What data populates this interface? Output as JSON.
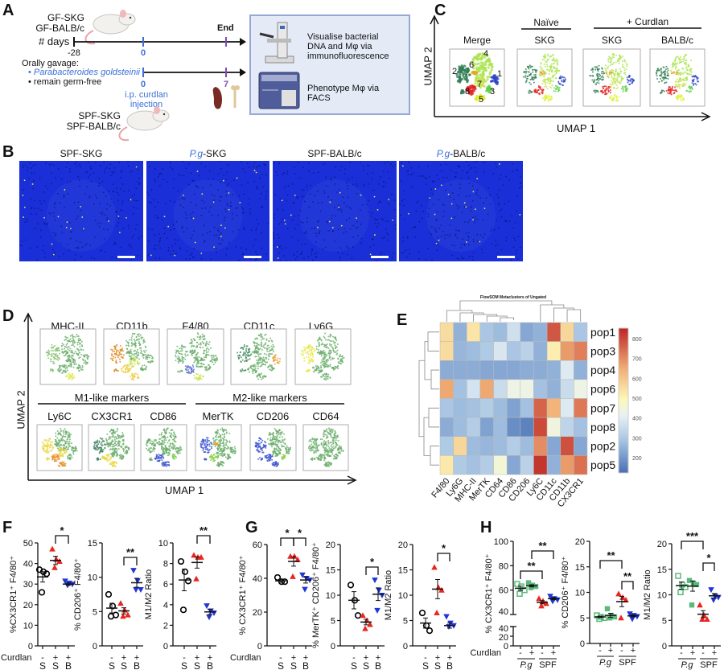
{
  "panel_labels": {
    "a": "A",
    "b": "B",
    "c": "C",
    "d": "D",
    "e": "E",
    "f": "F",
    "g": "G",
    "h": "H"
  },
  "panel_a": {
    "gf_strains": [
      "GF-SKG",
      "GF-BALB/c"
    ],
    "days_label": "# days",
    "tick_start": "-28",
    "tick_zero": "0",
    "end_label": "End",
    "gavage_title": "Orally gavage:",
    "gavage_items": [
      "Parabacteroides goldsteinii",
      "remain germ-free"
    ],
    "tick_zero_2": "0",
    "tick_end_2": "7",
    "injection_lines": [
      "i.p. curdlan",
      "injection"
    ],
    "spf_strains": [
      "SPF-SKG",
      "SPF-BALB/c"
    ],
    "readouts": [
      {
        "lines": [
          "Visualise bacterial",
          "DNA and Mφ via",
          "immunofluorescence"
        ],
        "icon": "microscope-icon"
      },
      {
        "lines": [
          "Phenotype Mφ via",
          "FACS"
        ],
        "icon": "flow-cytometer-icon"
      }
    ],
    "colors": {
      "timeline_zero": "#3a6fd8",
      "timeline_end": "#7a4fb0",
      "box_fill": "#e4eaf6",
      "box_border": "#95a8d6"
    }
  },
  "panel_b": {
    "titles": [
      {
        "prefix": "",
        "rest": "SPF-SKG"
      },
      {
        "prefix": "P.g",
        "rest": "-SKG"
      },
      {
        "prefix": "",
        "rest": "SPF-BALB/c"
      },
      {
        "prefix": "P.g",
        "rest": "-BALB/c"
      }
    ],
    "colors": {
      "dapi": "#1a2fd8",
      "bacterial_dna": "#f5e84a"
    }
  },
  "panel_c": {
    "y_axis": "UMAP 2",
    "x_axis": "UMAP 1",
    "group_headers": [
      "Naïve",
      "+ Curdlan"
    ],
    "plot_titles": [
      "Merge",
      "SKG",
      "SKG",
      "BALB/c"
    ],
    "cluster_labels": [
      "1",
      "2",
      "3",
      "4",
      "5",
      "6",
      "7",
      "8"
    ],
    "cluster_colors": {
      "1": "#2a44c8",
      "2": "#2f7d52",
      "3": "#5fcf48",
      "4": "#a9e34b",
      "5": "#dff02a",
      "6": "#f0a020",
      "7": "#c9e35a",
      "8": "#e2231f"
    }
  },
  "panel_d": {
    "y_axis": "UMAP 2",
    "x_axis": "UMAP 1",
    "row1_titles": [
      "MHC-II",
      "CD11b",
      "F4/80",
      "CD11c",
      "Ly6G"
    ],
    "group_headers": [
      "M1-like markers",
      "M2-like markers"
    ],
    "row2_titles": [
      "Ly6C",
      "CX3CR1",
      "CD86",
      "MerTK",
      "CD206",
      "CD64"
    ]
  },
  "colors": {
    "naive": "#000000",
    "skg_curdlan": "#e8251f",
    "balb_curdlan": "#1f35d6",
    "pg": "#5cb87a"
  },
  "chart_data": [
    {
      "type": "heatmap",
      "title": "FlowSOM Metaclusters of Ungated",
      "rows": [
        "pop1",
        "pop3",
        "pop4",
        "pop6",
        "pop7",
        "pop8",
        "pop2",
        "pop5"
      ],
      "columns": [
        "F4/80",
        "Ly6G",
        "MHC-II",
        "MerTK",
        "CD64",
        "CD86",
        "CD206",
        "Ly6C",
        "CD11c",
        "CD11b",
        "CX3CR1"
      ],
      "values": [
        [
          560,
          260,
          540,
          300,
          280,
          370,
          240,
          260,
          780,
          570,
          300
        ],
        [
          560,
          270,
          280,
          310,
          390,
          300,
          330,
          260,
          520,
          680,
          720
        ],
        [
          250,
          250,
          250,
          240,
          240,
          240,
          250,
          250,
          260,
          400,
          260
        ],
        [
          660,
          290,
          380,
          660,
          360,
          440,
          440,
          290,
          260,
          360,
          440
        ],
        [
          300,
          280,
          290,
          320,
          280,
          230,
          290,
          760,
          640,
          400,
          730
        ],
        [
          250,
          280,
          320,
          230,
          280,
          190,
          170,
          800,
          450,
          340,
          290
        ],
        [
          310,
          570,
          280,
          270,
          280,
          320,
          280,
          700,
          240,
          790,
          240
        ],
        [
          530,
          310,
          290,
          320,
          460,
          240,
          330,
          830,
          260,
          680,
          740
        ]
      ],
      "colorbar_ticks": [
        "200",
        "300",
        "400",
        "500",
        "600",
        "700",
        "800"
      ],
      "colorbar_range": [
        130,
        850
      ],
      "colormap": "RdYlBu (reversed)",
      "dendrograms": "rows and columns"
    },
    {
      "type": "scatter",
      "panel": "F",
      "ylabel": "%CX3CR1⁺ F4/80⁺",
      "ylim": [
        0,
        50
      ],
      "yticks": [
        "0",
        "10",
        "20",
        "30",
        "40",
        "50"
      ],
      "xrow_label": "Curdlan",
      "curdlan": [
        "-",
        "+",
        "+"
      ],
      "strain": [
        "S",
        "S",
        "B"
      ],
      "groups": [
        {
          "values": [
            37,
            36,
            35,
            26
          ],
          "mean": 33.5,
          "sem": 2.5,
          "marker": "circle-open",
          "color": "#000000"
        },
        {
          "values": [
            47,
            42,
            41,
            38
          ],
          "mean": 41.5,
          "sem": 2,
          "marker": "triangle-up",
          "color": "#e8251f"
        },
        {
          "values": [
            31.5,
            30.5,
            30,
            29.5
          ],
          "mean": 30,
          "sem": 0.6,
          "marker": "triangle-down",
          "color": "#1f35d6"
        }
      ],
      "significance": [
        {
          "from": 1,
          "to": 2,
          "label": "*"
        }
      ]
    },
    {
      "type": "scatter",
      "panel": "F",
      "ylabel": "% CD206⁺ F4/80⁺",
      "ylim": [
        0,
        15
      ],
      "yticks": [
        "0",
        "5",
        "10",
        "15"
      ],
      "curdlan": [
        "-",
        "+",
        "+"
      ],
      "strain": [
        "S",
        "S",
        "B"
      ],
      "groups": [
        {
          "values": [
            7.5,
            5.8,
            4.5,
            4.3
          ],
          "mean": 5.5,
          "sem": 0.7,
          "marker": "circle-open",
          "color": "#000000"
        },
        {
          "values": [
            6.2,
            5.2,
            4.5,
            4.3
          ],
          "mean": 5.1,
          "sem": 0.45,
          "marker": "triangle-up",
          "color": "#e8251f"
        },
        {
          "values": [
            11,
            9.5,
            8.2,
            8.2
          ],
          "mean": 9.2,
          "sem": 0.65,
          "marker": "triangle-down",
          "color": "#1f35d6"
        }
      ],
      "significance": [
        {
          "from": 1,
          "to": 2,
          "label": "**"
        }
      ]
    },
    {
      "type": "scatter",
      "panel": "F",
      "ylabel": "M1/M2 Ratio",
      "ylim": [
        0,
        10
      ],
      "yticks": [
        "0",
        "2",
        "4",
        "6",
        "8",
        "10"
      ],
      "curdlan": [
        "-",
        "+",
        "+"
      ],
      "strain": [
        "S",
        "S",
        "B"
      ],
      "groups": [
        {
          "values": [
            8.2,
            7.2,
            6.3,
            3.5
          ],
          "mean": 6.4,
          "sem": 1.05,
          "marker": "circle-open",
          "color": "#000000"
        },
        {
          "values": [
            8.8,
            8.6,
            8.6,
            6.5
          ],
          "mean": 8.1,
          "sem": 0.55,
          "marker": "triangle-up",
          "color": "#e8251f"
        },
        {
          "values": [
            3.9,
            3.4,
            3.2,
            2.8
          ],
          "mean": 3.3,
          "sem": 0.25,
          "marker": "triangle-down",
          "color": "#1f35d6"
        }
      ],
      "significance": [
        {
          "from": 1,
          "to": 2,
          "label": "**"
        }
      ]
    },
    {
      "type": "scatter",
      "panel": "G",
      "ylabel": "% CX3CR1⁺ F4/80⁺",
      "ylim": [
        0,
        60
      ],
      "yticks": [
        "0",
        "20",
        "40",
        "60"
      ],
      "xrow_label": "Curdlan",
      "curdlan": [
        "-",
        "+",
        "+"
      ],
      "strain": [
        "S",
        "S",
        "B"
      ],
      "groups": [
        {
          "values": [
            40.5,
            38,
            38
          ],
          "mean": 38.5,
          "sem": 0.9,
          "marker": "circle-open",
          "color": "#000000"
        },
        {
          "values": [
            53,
            53,
            51,
            41
          ],
          "mean": 50,
          "sem": 2.8,
          "marker": "triangle-up",
          "color": "#e8251f"
        },
        {
          "values": [
            42,
            40,
            39,
            33.5
          ],
          "mean": 39,
          "sem": 1.8,
          "marker": "triangle-down",
          "color": "#1f35d6"
        }
      ],
      "significance": [
        {
          "from": 0,
          "to": 1,
          "label": "*"
        },
        {
          "from": 1,
          "to": 2,
          "label": "*"
        }
      ]
    },
    {
      "type": "scatter",
      "panel": "G",
      "ylabel": "% MerTK⁺ CD206⁺ F4/80⁺",
      "ylim": [
        0,
        20
      ],
      "yticks": [
        "0",
        "5",
        "10",
        "15",
        "20"
      ],
      "curdlan": [
        "-",
        "+",
        "+"
      ],
      "strain": [
        "S",
        "S",
        "B"
      ],
      "groups": [
        {
          "values": [
            12,
            9,
            6
          ],
          "mean": 9,
          "sem": 1.7,
          "marker": "circle-open",
          "color": "#000000"
        },
        {
          "values": [
            6,
            5,
            4.2,
            3.4
          ],
          "mean": 4.7,
          "sem": 0.55,
          "marker": "triangle-up",
          "color": "#e8251f"
        },
        {
          "values": [
            13,
            11,
            10,
            7
          ],
          "mean": 10.2,
          "sem": 1.25,
          "marker": "triangle-down",
          "color": "#1f35d6"
        }
      ],
      "significance": [
        {
          "from": 1,
          "to": 2,
          "label": "*"
        }
      ]
    },
    {
      "type": "scatter",
      "panel": "G",
      "ylabel": "M1/M2 Ratio",
      "ylim": [
        0,
        20
      ],
      "yticks": [
        "0",
        "5",
        "10",
        "15",
        "20"
      ],
      "curdlan": [
        "-",
        "+",
        "+"
      ],
      "strain": [
        "S",
        "S",
        "B"
      ],
      "groups": [
        {
          "values": [
            6.5,
            4,
            3
          ],
          "mean": 4.5,
          "sem": 1,
          "marker": "circle-open",
          "color": "#000000"
        },
        {
          "values": [
            15.5,
            11.5,
            11,
            6.5
          ],
          "mean": 11.2,
          "sem": 1.9,
          "marker": "triangle-up",
          "color": "#e8251f"
        },
        {
          "values": [
            5.8,
            4.5,
            4,
            3.8
          ],
          "mean": 4,
          "sem": 0.5,
          "marker": "triangle-down",
          "color": "#1f35d6"
        }
      ],
      "significance": [
        {
          "from": 1,
          "to": 2,
          "label": "*"
        }
      ]
    },
    {
      "type": "scatter",
      "panel": "H",
      "ylabel": "% CX3CR1⁺ F4/80⁺",
      "ylim": [
        0,
        100
      ],
      "axis_break": [
        40,
        40
      ],
      "yticks_upper": [
        "40",
        "60",
        "80",
        "100"
      ],
      "yticks_lower": [
        "0",
        "20",
        "40"
      ],
      "xrow_label": "Curdlan",
      "curdlan": [
        "-",
        "+",
        "-",
        "+"
      ],
      "source_groups": [
        "P.g",
        "SPF"
      ],
      "groups": [
        {
          "values": [
            65,
            63,
            60,
            57
          ],
          "mean": 61.5,
          "sem": 1.7,
          "marker": "square-open",
          "color": "#5cb87a"
        },
        {
          "values": [
            66,
            64,
            63,
            62
          ],
          "mean": 63.5,
          "sem": 0.9,
          "marker": "square-filled",
          "color": "#5cb87a"
        },
        {
          "values": [
            53,
            51,
            49,
            47
          ],
          "mean": 50,
          "sem": 1.3,
          "marker": "triangle-up",
          "color": "#e8251f"
        },
        {
          "values": [
            55,
            53,
            52,
            51
          ],
          "mean": 53,
          "sem": 0.9,
          "marker": "triangle-down",
          "color": "#1f35d6"
        }
      ],
      "significance": [
        {
          "from": 0,
          "to": 2,
          "label": "**"
        },
        {
          "from": 1,
          "to": 3,
          "label": "**"
        }
      ]
    },
    {
      "type": "scatter",
      "panel": "H",
      "ylabel": "% CD206⁺ F4/80⁺",
      "ylim": [
        0,
        20
      ],
      "yticks": [
        "0",
        "5",
        "10",
        "15",
        "20"
      ],
      "curdlan": [
        "-",
        "+",
        "-",
        "+"
      ],
      "source_groups": [
        "P.g",
        "SPF"
      ],
      "groups": [
        {
          "values": [
            5.5,
            5.2,
            5,
            4.8
          ],
          "mean": 5.2,
          "sem": 0.15,
          "marker": "square-open",
          "color": "#5cb87a"
        },
        {
          "values": [
            6.8,
            5.5,
            5.2,
            5
          ],
          "mean": 5.5,
          "sem": 0.4,
          "marker": "square-filled",
          "color": "#5cb87a"
        },
        {
          "values": [
            9.7,
            9,
            8.5,
            5
          ],
          "mean": 8.2,
          "sem": 1,
          "marker": "triangle-up",
          "color": "#e8251f"
        },
        {
          "values": [
            5.8,
            5.5,
            5.3,
            4.8
          ],
          "mean": 5.4,
          "sem": 0.2,
          "marker": "triangle-down",
          "color": "#1f35d6"
        }
      ],
      "significance": [
        {
          "from": 0,
          "to": 2,
          "label": "**"
        },
        {
          "from": 2,
          "to": 3,
          "label": "**"
        }
      ]
    },
    {
      "type": "scatter",
      "panel": "H",
      "ylabel": "M1/M2 Ratio",
      "ylim": [
        0,
        20
      ],
      "yticks": [
        "0",
        "5",
        "10",
        "15",
        "20"
      ],
      "curdlan": [
        "-",
        "+",
        "-",
        "+"
      ],
      "source_groups": [
        "P.g",
        "SPF"
      ],
      "groups": [
        {
          "values": [
            13.7,
            12,
            11.5,
            10.5
          ],
          "mean": 11.8,
          "sem": 0.7,
          "marker": "square-open",
          "color": "#5cb87a"
        },
        {
          "values": [
            12.8,
            12.3,
            12,
            8
          ],
          "mean": 11.7,
          "sem": 1,
          "marker": "square-filled",
          "color": "#5cb87a"
        },
        {
          "values": [
            8,
            6,
            5.2,
            5.2
          ],
          "mean": 6.2,
          "sem": 0.7,
          "marker": "triangle-up",
          "color": "#e8251f"
        },
        {
          "values": [
            11,
            9.8,
            9.5,
            9
          ],
          "mean": 9.8,
          "sem": 0.45,
          "marker": "triangle-down",
          "color": "#1f35d6"
        }
      ],
      "significance": [
        {
          "from": 0,
          "to": 2,
          "label": "***"
        },
        {
          "from": 2,
          "to": 3,
          "label": "*"
        }
      ]
    }
  ]
}
